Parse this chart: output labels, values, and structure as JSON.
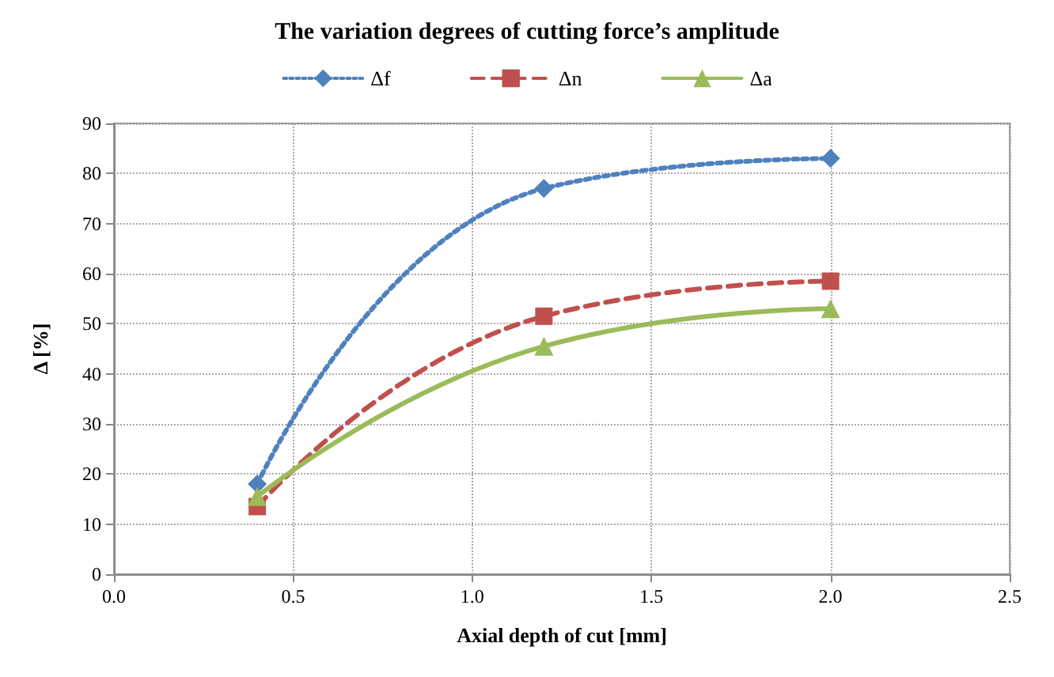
{
  "chart_data": {
    "type": "line",
    "title": "The variation degrees of cutting force’s amplitude",
    "xlabel": "Axial depth of cut [mm]",
    "ylabel": "Δ [%]",
    "x": [
      0.4,
      1.2,
      2.0
    ],
    "series": [
      {
        "name": "Δf",
        "color": "#4f81bd",
        "marker": "diamond",
        "line_style": "dotted",
        "values": [
          18,
          77,
          83
        ]
      },
      {
        "name": "Δn",
        "color": "#c0504d",
        "marker": "square",
        "line_style": "dashed",
        "values": [
          13.5,
          51.5,
          58.5
        ]
      },
      {
        "name": "Δa",
        "color": "#9bbb59",
        "marker": "triangle",
        "line_style": "solid",
        "values": [
          15.5,
          45.5,
          53
        ]
      }
    ],
    "xlim": [
      0,
      2.5
    ],
    "xticks": [
      {
        "value": 0,
        "label": "0.0"
      },
      {
        "value": 0.5,
        "label": "0.5"
      },
      {
        "value": 1,
        "label": "1.0"
      },
      {
        "value": 1.5,
        "label": "1.5"
      },
      {
        "value": 2,
        "label": "2.0"
      },
      {
        "value": 2.5,
        "label": "2.5"
      }
    ],
    "ylim": [
      0,
      90
    ],
    "yticks": [
      0,
      10,
      20,
      30,
      40,
      50,
      60,
      70,
      80,
      90
    ],
    "grid": true,
    "legend": "top"
  }
}
